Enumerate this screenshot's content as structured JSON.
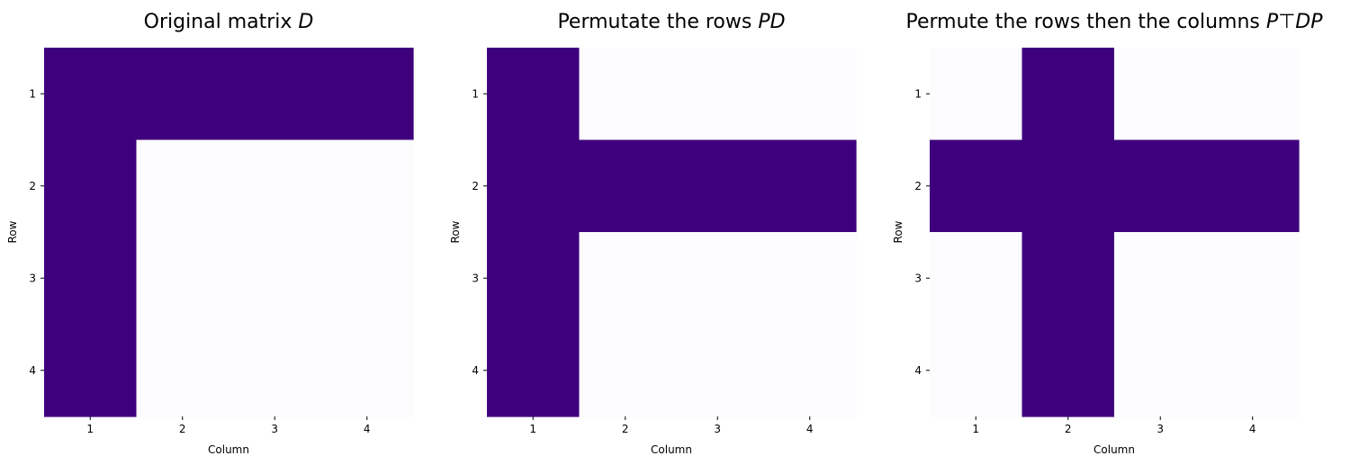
{
  "chart_data": [
    {
      "type": "heatmap",
      "title_text": "Original matrix ",
      "title_math": "D",
      "xlabel": "Column",
      "ylabel": "Row",
      "x_ticks": [
        "1",
        "2",
        "3",
        "4"
      ],
      "y_ticks": [
        "1",
        "2",
        "3",
        "4"
      ],
      "matrix": [
        [
          1,
          1,
          1,
          1
        ],
        [
          1,
          0,
          0,
          0
        ],
        [
          1,
          0,
          0,
          0
        ],
        [
          1,
          0,
          0,
          0
        ]
      ]
    },
    {
      "type": "heatmap",
      "title_text": "Permutate the rows ",
      "title_math": "PD",
      "xlabel": "Column",
      "ylabel": "Row",
      "x_ticks": [
        "1",
        "2",
        "3",
        "4"
      ],
      "y_ticks": [
        "1",
        "2",
        "3",
        "4"
      ],
      "matrix": [
        [
          1,
          0,
          0,
          0
        ],
        [
          1,
          1,
          1,
          1
        ],
        [
          1,
          0,
          0,
          0
        ],
        [
          1,
          0,
          0,
          0
        ]
      ]
    },
    {
      "type": "heatmap",
      "title_text": "Permute the rows then the columns ",
      "title_math": "P⊤DP",
      "xlabel": "Column",
      "ylabel": "Row",
      "x_ticks": [
        "1",
        "2",
        "3",
        "4"
      ],
      "y_ticks": [
        "1",
        "2",
        "3",
        "4"
      ],
      "matrix": [
        [
          0,
          1,
          0,
          0
        ],
        [
          1,
          1,
          1,
          1
        ],
        [
          0,
          1,
          0,
          0
        ],
        [
          0,
          1,
          0,
          0
        ]
      ]
    }
  ],
  "colors": {
    "filled": "#3f007d",
    "empty": "#fcfbfd"
  }
}
